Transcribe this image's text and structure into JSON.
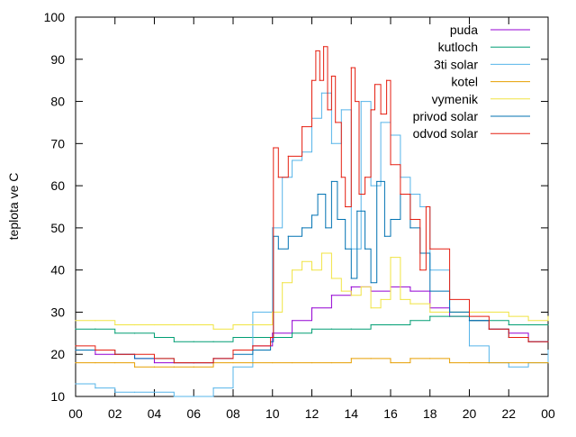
{
  "chart_data": {
    "type": "line",
    "ylabel": "teplota ve C",
    "xlabel": "",
    "xlim": [
      0,
      24
    ],
    "ylim": [
      10,
      100
    ],
    "x_ticks": [
      "00",
      "02",
      "04",
      "06",
      "08",
      "10",
      "12",
      "14",
      "16",
      "18",
      "20",
      "22",
      "00"
    ],
    "y_ticks": [
      10,
      20,
      30,
      40,
      50,
      60,
      70,
      80,
      90,
      100
    ],
    "grid": false,
    "legend_position": "top-right",
    "series": [
      {
        "name": "puda",
        "color": "#9400d3",
        "x": [
          0,
          1,
          2,
          3,
          4,
          5,
          6,
          7,
          8,
          9,
          10,
          11,
          12,
          13,
          14,
          15,
          16,
          17,
          18,
          19,
          20,
          21,
          22,
          23,
          24
        ],
        "y": [
          21,
          20,
          20,
          19,
          18,
          18,
          18,
          19,
          21,
          22,
          25,
          28,
          31,
          34,
          36,
          35,
          36,
          35,
          31,
          29,
          28,
          26,
          25,
          23,
          23
        ]
      },
      {
        "name": "kutloch",
        "color": "#009e73",
        "x": [
          0,
          1,
          2,
          3,
          4,
          5,
          6,
          7,
          8,
          9,
          10,
          11,
          12,
          13,
          14,
          15,
          16,
          17,
          18,
          19,
          20,
          21,
          22,
          23,
          24
        ],
        "y": [
          26,
          26,
          25,
          25,
          24,
          23,
          23,
          23,
          24,
          24,
          24,
          25,
          26,
          26,
          26,
          27,
          27,
          28,
          29,
          29,
          28,
          28,
          27,
          27,
          27
        ]
      },
      {
        "name": "3ti solar",
        "color": "#56b4e9",
        "x": [
          0,
          1,
          2,
          3,
          4,
          5,
          6,
          7,
          8,
          9,
          10,
          10.5,
          11,
          11.5,
          12,
          12.5,
          13,
          13.5,
          14,
          14.5,
          15,
          15.5,
          16,
          16.5,
          17,
          17.5,
          18,
          19,
          20,
          21,
          22,
          23,
          24
        ],
        "y": [
          13,
          12,
          11,
          11,
          11,
          10,
          10,
          12,
          17,
          30,
          50,
          62,
          66,
          68,
          76,
          82,
          70,
          78,
          45,
          80,
          60,
          75,
          72,
          62,
          58,
          55,
          40,
          30,
          22,
          18,
          17,
          18,
          21
        ]
      },
      {
        "name": "kotel",
        "color": "#e69f00",
        "x": [
          0,
          1,
          2,
          3,
          4,
          5,
          6,
          7,
          8,
          9,
          10,
          11,
          12,
          13,
          14,
          15,
          16,
          17,
          18,
          19,
          20,
          21,
          22,
          23,
          24
        ],
        "y": [
          18,
          18,
          18,
          17,
          17,
          17,
          17,
          18,
          18,
          18,
          18,
          18,
          18,
          18,
          19,
          19,
          18,
          19,
          19,
          18,
          18,
          18,
          18,
          18,
          18
        ]
      },
      {
        "name": "vymenik",
        "color": "#f0e442",
        "x": [
          0,
          1,
          2,
          3,
          4,
          5,
          6,
          7,
          8,
          9,
          10,
          10.5,
          11,
          11.5,
          12,
          12.5,
          13,
          13.5,
          14,
          14.5,
          15,
          15.5,
          16,
          16.5,
          17,
          18,
          19,
          20,
          21,
          22,
          23,
          24
        ],
        "y": [
          28,
          28,
          27,
          27,
          27,
          27,
          27,
          26,
          27,
          27,
          30,
          37,
          40,
          42,
          40,
          44,
          38,
          35,
          34,
          36,
          31,
          33,
          43,
          33,
          32,
          30,
          30,
          30,
          30,
          29,
          28,
          29
        ]
      },
      {
        "name": "privod solar",
        "color": "#0072b2",
        "x": [
          0,
          1,
          2,
          3,
          4,
          5,
          6,
          7,
          8,
          9,
          9.9,
          10.05,
          10.3,
          10.8,
          11.5,
          12,
          12.3,
          12.7,
          13,
          13.3,
          13.7,
          14,
          14.3,
          14.7,
          15,
          15.3,
          15.7,
          16,
          16.5,
          17,
          17.5,
          18,
          19,
          20,
          21,
          22,
          23,
          24
        ],
        "y": [
          21,
          21,
          20,
          19,
          19,
          18,
          18,
          19,
          20,
          21,
          23,
          48,
          45,
          48,
          50,
          53,
          58,
          50,
          61,
          52,
          45,
          38,
          54,
          45,
          37,
          61,
          48,
          52,
          58,
          50,
          44,
          35,
          30,
          28,
          26,
          24,
          23,
          23
        ]
      },
      {
        "name": "odvod solar",
        "color": "#e51e10",
        "x": [
          0,
          1,
          2,
          3,
          4,
          5,
          6,
          7,
          8,
          9,
          9.9,
          10.05,
          10.3,
          10.8,
          11.5,
          12,
          12.2,
          12.4,
          12.6,
          12.8,
          13,
          13.2,
          13.5,
          13.7,
          14,
          14.2,
          14.4,
          14.7,
          15,
          15.2,
          15.5,
          15.8,
          16,
          16.5,
          17,
          17.5,
          17.8,
          18,
          19,
          20,
          21,
          22,
          23,
          24
        ],
        "y": [
          22,
          21,
          20,
          20,
          19,
          18,
          18,
          19,
          21,
          22,
          24,
          69,
          62,
          67,
          74,
          85,
          92,
          85,
          93,
          78,
          86,
          75,
          62,
          55,
          88,
          80,
          58,
          62,
          78,
          84,
          77,
          85,
          65,
          58,
          52,
          40,
          55,
          45,
          33,
          29,
          26,
          24,
          23,
          23
        ]
      }
    ]
  }
}
